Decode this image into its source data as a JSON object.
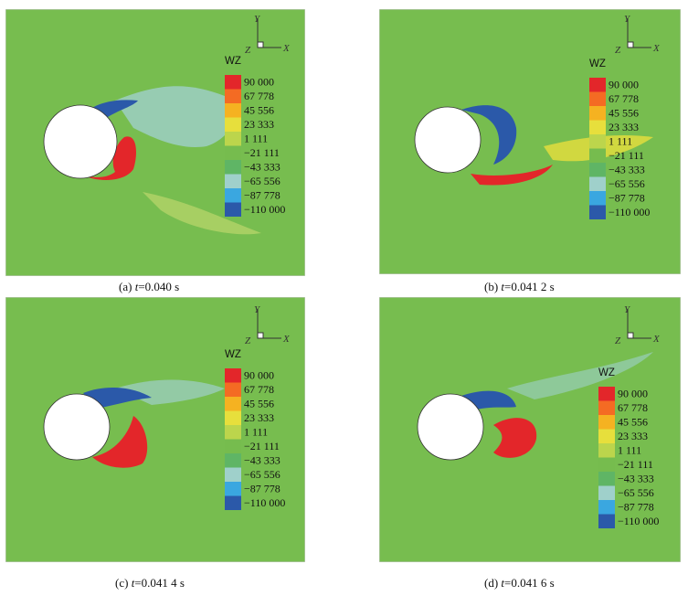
{
  "legend": {
    "title": "WZ",
    "values": [
      "90 000",
      "67 778",
      "45 556",
      "23 333",
      "1 111",
      "−21 111",
      "−43 333",
      "−65 556",
      "−87 778",
      "−110 000"
    ],
    "colors": [
      "#e3262a",
      "#f46b23",
      "#f5b221",
      "#e7df3c",
      "#bcd54c",
      "#76bc4e",
      "#5fb565",
      "#9fd0cb",
      "#3aa7e0",
      "#2b59a9"
    ]
  },
  "axes": {
    "y": "Y",
    "z": "Z",
    "x": "X"
  },
  "background_color": "#77bd4f",
  "panels": [
    {
      "caption_prefix": "(a) ",
      "caption_var": "t",
      "caption_rest": "=0.040 s"
    },
    {
      "caption_prefix": "(b) ",
      "caption_var": "t",
      "caption_rest": "=0.041 2 s"
    },
    {
      "caption_prefix": "(c) ",
      "caption_var": "t",
      "caption_rest": "=0.041 4 s"
    },
    {
      "caption_prefix": "(d) ",
      "caption_var": "t",
      "caption_rest": "=0.041 6 s"
    }
  ]
}
